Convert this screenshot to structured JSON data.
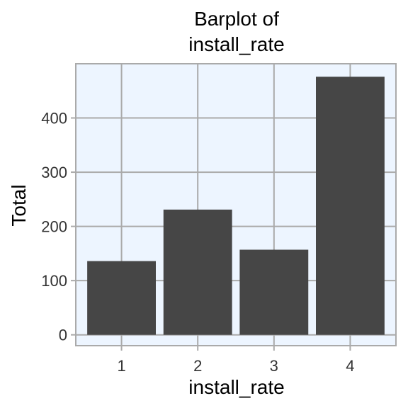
{
  "chart_data": {
    "type": "bar",
    "title_lines": [
      "Barplot of",
      "install_rate"
    ],
    "xlabel": "install_rate",
    "ylabel": "Total",
    "categories": [
      "1",
      "2",
      "3",
      "4"
    ],
    "values": [
      136,
      231,
      157,
      476
    ],
    "yticks": [
      0,
      100,
      200,
      300,
      400
    ],
    "ylim": [
      -20,
      500
    ],
    "grid": true,
    "legend": "none",
    "colors": {
      "bar": "#464646",
      "panel_background": "#EDF5FF",
      "grid": "#AAAAAA",
      "axis_text": "#333333"
    }
  }
}
